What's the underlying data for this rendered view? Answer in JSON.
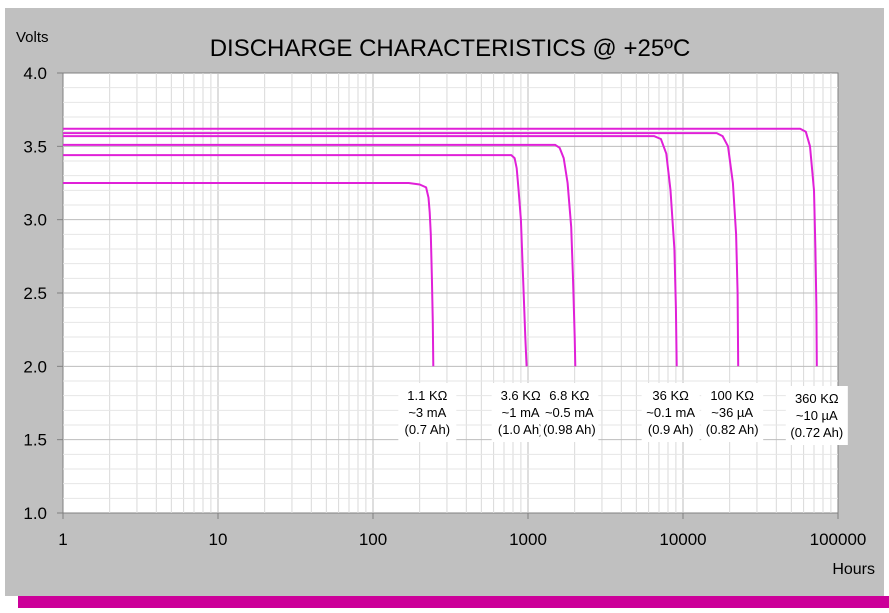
{
  "chart_data": {
    "type": "line",
    "title": "DISCHARGE CHARACTERISTICS @ +25ºC",
    "ylabel": "Volts",
    "xlabel": "Hours",
    "x_scale": "log",
    "xlim": [
      1,
      100000
    ],
    "ylim": [
      1.0,
      4.0
    ],
    "x_ticks": [
      "1",
      "10",
      "100",
      "1000",
      "10000",
      "100000"
    ],
    "y_ticks": [
      "1.0",
      "1.5",
      "2.0",
      "2.5",
      "3.0",
      "3.5",
      "4.0"
    ],
    "grid": true,
    "line_color": "#e020d8",
    "background_color": "#c0c0c0",
    "bottom_bar_color": "#cc0099",
    "series": [
      {
        "points": [
          [
            1,
            3.25
          ],
          [
            170,
            3.25
          ],
          [
            200,
            3.24
          ],
          [
            220,
            3.22
          ],
          [
            228,
            3.15
          ],
          [
            232,
            3.05
          ],
          [
            236,
            2.9
          ],
          [
            240,
            2.6
          ],
          [
            243,
            2.3
          ],
          [
            245,
            2.0
          ]
        ],
        "label": [
          "1.1 KΩ",
          "~3 mA",
          "(0.7 Ah)"
        ]
      },
      {
        "points": [
          [
            1,
            3.44
          ],
          [
            780,
            3.44
          ],
          [
            820,
            3.42
          ],
          [
            845,
            3.35
          ],
          [
            870,
            3.2
          ],
          [
            900,
            3.0
          ],
          [
            930,
            2.6
          ],
          [
            960,
            2.2
          ],
          [
            980,
            2.0
          ]
        ],
        "label": [
          "3.6 KΩ",
          "~1 mA",
          "(1.0 Ah)"
        ]
      },
      {
        "points": [
          [
            1,
            3.51
          ],
          [
            1500,
            3.51
          ],
          [
            1600,
            3.49
          ],
          [
            1700,
            3.42
          ],
          [
            1800,
            3.25
          ],
          [
            1900,
            2.95
          ],
          [
            1950,
            2.6
          ],
          [
            2000,
            2.2
          ],
          [
            2020,
            2.0
          ]
        ],
        "label": [
          "6.8 KΩ",
          "~0.5 mA",
          "(0.98 Ah)"
        ]
      },
      {
        "points": [
          [
            1,
            3.57
          ],
          [
            6500,
            3.57
          ],
          [
            7200,
            3.55
          ],
          [
            7800,
            3.45
          ],
          [
            8300,
            3.2
          ],
          [
            8800,
            2.8
          ],
          [
            9000,
            2.4
          ],
          [
            9100,
            2.0
          ]
        ],
        "label": [
          "36 KΩ",
          "~0.1 mA",
          "(0.9 Ah)"
        ]
      },
      {
        "points": [
          [
            1,
            3.59
          ],
          [
            16500,
            3.59
          ],
          [
            18000,
            3.57
          ],
          [
            19500,
            3.5
          ],
          [
            21000,
            3.25
          ],
          [
            22000,
            2.9
          ],
          [
            22500,
            2.5
          ],
          [
            22700,
            2.0
          ]
        ],
        "label": [
          "100 KΩ",
          "~36 µA",
          "(0.82 Ah)"
        ]
      },
      {
        "points": [
          [
            1,
            3.62
          ],
          [
            57000,
            3.62
          ],
          [
            62000,
            3.6
          ],
          [
            66000,
            3.5
          ],
          [
            70000,
            3.2
          ],
          [
            71500,
            2.8
          ],
          [
            72500,
            2.4
          ],
          [
            73000,
            2.0
          ]
        ],
        "label": [
          "360 KΩ",
          "~10 µA",
          "(0.72 Ah)"
        ]
      }
    ]
  }
}
